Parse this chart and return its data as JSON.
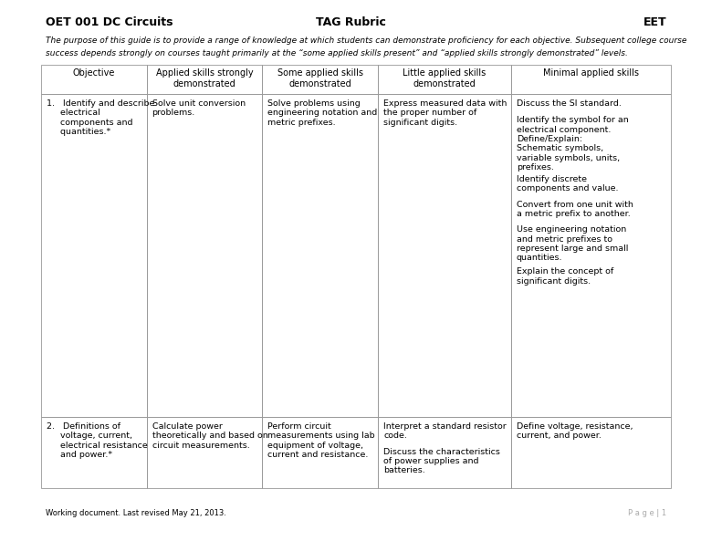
{
  "title_left": "OET 001 DC Circuits",
  "title_center": "TAG Rubric",
  "title_right": "EET",
  "subtitle_line1": "The purpose of this guide is to provide a range of knowledge at which students can demonstrate proficiency for each objective. Subsequent college course",
  "subtitle_line2": "success depends strongly on courses taught primarily at the “some applied skills present” and “applied skills strongly demonstrated” levels.",
  "footer_left": "Working document. Last revised May 21, 2013.",
  "footer_right": "P a g e | 1",
  "col_headers": [
    "Objective",
    "Applied skills strongly\ndemonstrated",
    "Some applied skills\ndemonstrated",
    "Little applied skills\ndemonstrated",
    "Minimal applied skills"
  ],
  "row1_col0": "1.   Identify and describe\n     electrical\n     components and\n     quantities.*",
  "row1_col1": "Solve unit conversion\nproblems.",
  "row1_col2": "Solve problems using\nengineering notation and\nmetric prefixes.",
  "row1_col3": "Express measured data with\nthe proper number of\nsignificant digits.",
  "row1_col4_parts": [
    "Discuss the SI standard.",
    "Identify the symbol for an\nelectrical component.\nDefine/Explain:\nSchematic symbols,\nvariable symbols, units,\nprefixes.",
    "Identify discrete\ncomponents and value.",
    "Convert from one unit with\na metric prefix to another.",
    "Use engineering notation\nand metric prefixes to\nrepresent large and small\nquantities.",
    "Explain the concept of\nsignificant digits."
  ],
  "row2_col0": "2.   Definitions of\n     voltage, current,\n     electrical resistance\n     and power.*",
  "row2_col1": "Calculate power\ntheoretically and based on\ncircuit measurements.",
  "row2_col2": "Perform circuit\nmeasurements using lab\nequipment of voltage,\ncurrent and resistance.",
  "row2_col3_parts": [
    "Interpret a standard resistor\ncode.",
    "Discuss the characteristics\nof power supplies and\nbatteries."
  ],
  "row2_col4": "Define voltage, resistance,\ncurrent, and power.",
  "background_color": "#ffffff",
  "text_color": "#000000",
  "border_color": "#999999",
  "title_fontsize": 9,
  "subtitle_fontsize": 6.5,
  "header_fontsize": 7,
  "body_fontsize": 6.8,
  "footer_fontsize": 6
}
